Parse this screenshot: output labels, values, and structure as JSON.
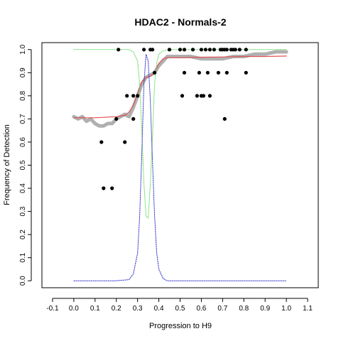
{
  "chart_data": {
    "type": "scatter",
    "title": "HDAC2 - Normals-2",
    "xlabel": "Progression to H9",
    "ylabel": "Frequency of Detection",
    "xlim": [
      -0.15,
      1.15
    ],
    "ylim": [
      -0.03,
      1.03
    ],
    "x_ticks": [
      -0.1,
      0.0,
      0.1,
      0.2,
      0.3,
      0.4,
      0.5,
      0.6,
      0.7,
      0.8,
      0.9,
      1.0,
      1.1
    ],
    "x_tick_labels": [
      "-0.1",
      "0.0",
      "0.1",
      "0.2",
      "0.3",
      "0.4",
      "0.5",
      "0.6",
      "0.7",
      "0.8",
      "0.9",
      "1.0",
      "1.1"
    ],
    "y_ticks": [
      0.0,
      0.1,
      0.2,
      0.3,
      0.4,
      0.5,
      0.6,
      0.7,
      0.8,
      0.9,
      1.0
    ],
    "y_tick_labels": [
      "0.0",
      "0.1",
      "0.2",
      "0.3",
      "0.4",
      "0.5",
      "0.6",
      "0.7",
      "0.8",
      "0.9",
      "1.0"
    ],
    "grid": false,
    "colors": {
      "points": "#000000",
      "smooth": "#b0b0b0",
      "fit": "#e05050",
      "green": "#66dd66",
      "blue": "#3333cc"
    },
    "points": [
      {
        "x": 0.13,
        "y": 0.6
      },
      {
        "x": 0.14,
        "y": 0.4
      },
      {
        "x": 0.18,
        "y": 0.4
      },
      {
        "x": 0.2,
        "y": 0.7
      },
      {
        "x": 0.21,
        "y": 1.0
      },
      {
        "x": 0.24,
        "y": 0.6
      },
      {
        "x": 0.25,
        "y": 0.8
      },
      {
        "x": 0.28,
        "y": 0.7
      },
      {
        "x": 0.28,
        "y": 0.8
      },
      {
        "x": 0.3,
        "y": 0.8
      },
      {
        "x": 0.33,
        "y": 1.0
      },
      {
        "x": 0.36,
        "y": 1.0
      },
      {
        "x": 0.37,
        "y": 1.0
      },
      {
        "x": 0.38,
        "y": 0.9
      },
      {
        "x": 0.45,
        "y": 1.0
      },
      {
        "x": 0.5,
        "y": 1.0
      },
      {
        "x": 0.51,
        "y": 0.8
      },
      {
        "x": 0.52,
        "y": 0.9
      },
      {
        "x": 0.52,
        "y": 1.0
      },
      {
        "x": 0.56,
        "y": 1.0
      },
      {
        "x": 0.58,
        "y": 0.8
      },
      {
        "x": 0.59,
        "y": 0.9
      },
      {
        "x": 0.6,
        "y": 1.0
      },
      {
        "x": 0.6,
        "y": 0.8
      },
      {
        "x": 0.61,
        "y": 0.8
      },
      {
        "x": 0.62,
        "y": 1.0
      },
      {
        "x": 0.63,
        "y": 0.9
      },
      {
        "x": 0.64,
        "y": 0.8
      },
      {
        "x": 0.64,
        "y": 1.0
      },
      {
        "x": 0.66,
        "y": 1.0
      },
      {
        "x": 0.68,
        "y": 0.9
      },
      {
        "x": 0.69,
        "y": 1.0
      },
      {
        "x": 0.7,
        "y": 1.0
      },
      {
        "x": 0.71,
        "y": 0.7
      },
      {
        "x": 0.71,
        "y": 1.0
      },
      {
        "x": 0.72,
        "y": 0.9
      },
      {
        "x": 0.72,
        "y": 1.0
      },
      {
        "x": 0.74,
        "y": 1.0
      },
      {
        "x": 0.75,
        "y": 1.0
      },
      {
        "x": 0.76,
        "y": 1.0
      },
      {
        "x": 0.78,
        "y": 1.0
      },
      {
        "x": 0.81,
        "y": 1.0
      },
      {
        "x": 0.81,
        "y": 0.9
      }
    ],
    "series": [
      {
        "style": "thick-gray",
        "x": [
          0.0,
          0.02,
          0.04,
          0.06,
          0.08,
          0.1,
          0.12,
          0.14,
          0.16,
          0.18,
          0.2,
          0.22,
          0.24,
          0.26,
          0.28,
          0.3,
          0.32,
          0.34,
          0.36,
          0.38,
          0.4,
          0.42,
          0.44,
          0.46,
          0.5,
          0.55,
          0.6,
          0.65,
          0.7,
          0.75,
          0.8,
          0.85,
          0.9,
          0.95,
          1.0
        ],
        "y": [
          0.71,
          0.7,
          0.71,
          0.69,
          0.7,
          0.68,
          0.67,
          0.67,
          0.68,
          0.68,
          0.7,
          0.71,
          0.72,
          0.71,
          0.75,
          0.8,
          0.85,
          0.88,
          0.89,
          0.9,
          0.93,
          0.95,
          0.97,
          0.97,
          0.97,
          0.97,
          0.96,
          0.96,
          0.96,
          0.97,
          0.97,
          0.98,
          0.98,
          0.99,
          0.99
        ]
      },
      {
        "style": "red",
        "x": [
          0.0,
          0.1,
          0.2,
          0.24,
          0.26,
          0.28,
          0.3,
          0.32,
          0.34,
          0.36,
          0.38,
          0.4,
          0.42,
          0.44,
          0.46,
          0.5,
          0.6,
          0.7,
          0.8,
          0.9,
          1.0
        ],
        "y": [
          0.705,
          0.705,
          0.71,
          0.715,
          0.73,
          0.76,
          0.81,
          0.86,
          0.88,
          0.885,
          0.9,
          0.94,
          0.96,
          0.965,
          0.965,
          0.965,
          0.967,
          0.968,
          0.97,
          0.97,
          0.972
        ]
      },
      {
        "style": "green-dotted",
        "x": [
          0.0,
          0.1,
          0.2,
          0.26,
          0.28,
          0.3,
          0.31,
          0.32,
          0.33,
          0.34,
          0.35,
          0.36,
          0.37,
          0.38,
          0.39,
          0.4,
          0.42,
          0.45,
          0.5,
          0.6,
          0.8,
          1.0
        ],
        "y": [
          1.0,
          1.0,
          1.0,
          1.0,
          0.99,
          0.95,
          0.85,
          0.65,
          0.42,
          0.28,
          0.27,
          0.42,
          0.62,
          0.85,
          0.94,
          0.98,
          0.995,
          1.0,
          1.0,
          1.0,
          1.0,
          1.0
        ]
      },
      {
        "style": "blue-dotted",
        "x": [
          0.0,
          0.2,
          0.26,
          0.28,
          0.3,
          0.31,
          0.32,
          0.33,
          0.34,
          0.35,
          0.36,
          0.37,
          0.38,
          0.39,
          0.4,
          0.42,
          0.44,
          0.6,
          1.0
        ],
        "y": [
          0.0,
          0.0,
          0.005,
          0.03,
          0.12,
          0.28,
          0.55,
          0.85,
          0.98,
          0.95,
          0.78,
          0.52,
          0.28,
          0.12,
          0.05,
          0.01,
          0.0,
          0.0,
          0.0
        ]
      }
    ]
  }
}
